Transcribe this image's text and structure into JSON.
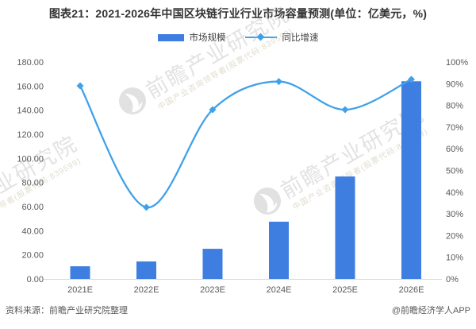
{
  "header": {
    "title": "图表21：2021-2026年中国区块链行业行业市场容量预测(单位：亿美元，%)"
  },
  "chart_data": {
    "type": "combo-bar-line",
    "title": "2021-2026年中国区块链行业行业市场容量预测",
    "categories": [
      "2021E",
      "2022E",
      "2023E",
      "2024E",
      "2025E",
      "2026E"
    ],
    "series": [
      {
        "name": "市场规模",
        "type": "bar",
        "axis": "left",
        "unit": "亿美元",
        "color": "#3E7EE0",
        "values": [
          10.5,
          14.5,
          25,
          47.5,
          85,
          164
        ]
      },
      {
        "name": "同比增速",
        "type": "line",
        "axis": "right",
        "unit": "%",
        "color": "#41A1E8",
        "marker": "diamond",
        "values": [
          89,
          33,
          78,
          91,
          78,
          92
        ]
      }
    ],
    "left_axis": {
      "min": 0,
      "max": 180,
      "step": 20,
      "format": "two-decimals"
    },
    "right_axis": {
      "min": 0,
      "max": 100,
      "step": 10,
      "format": "percent"
    },
    "grid": false,
    "legend_position": "top",
    "axis_line_color": "#D9D9D9",
    "label_color": "#595959"
  },
  "watermark": {
    "brand": "前瞻产业研究院",
    "tagline": "中国产业咨询领导者(股票代码:839599)",
    "logo": "qianzhan-circle-logo"
  },
  "footer": {
    "source": "资料来源：前瞻产业研究院整理",
    "credit": "@前瞻经济学人APP"
  }
}
